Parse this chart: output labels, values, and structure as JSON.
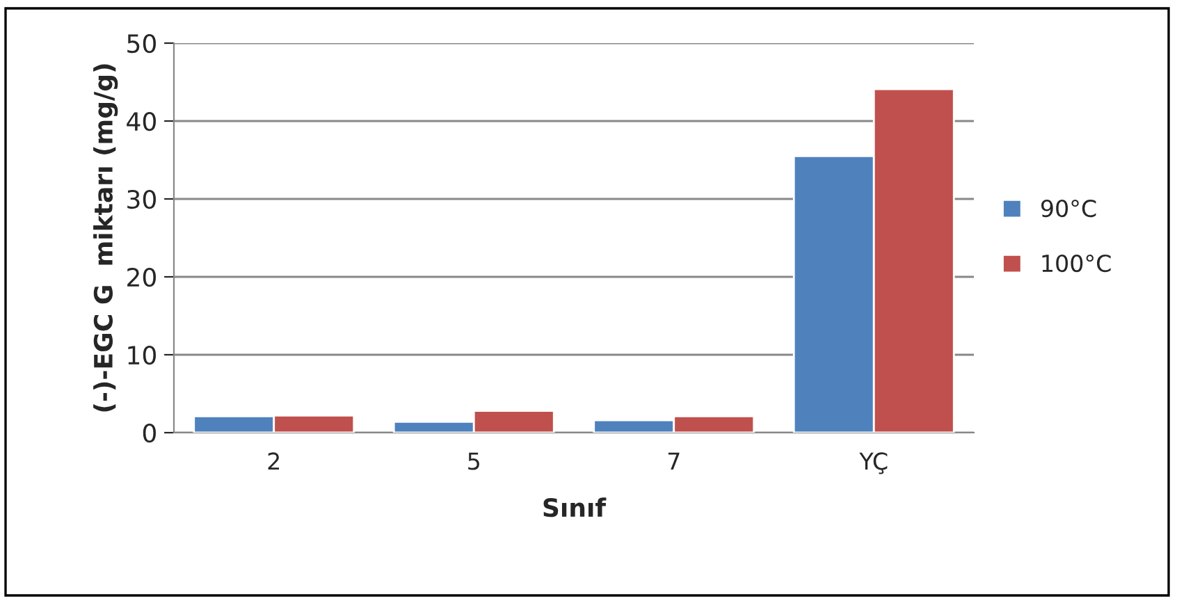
{
  "chart_data": {
    "type": "bar",
    "xlabel": "Sınıf",
    "ylabel": "(-)-EGC G  miktarı (mg/g)",
    "categories": [
      "2",
      "5",
      "7",
      "YÇ"
    ],
    "series": [
      {
        "name": "90°C",
        "color": "#4f81bd",
        "values": [
          2.1,
          1.4,
          1.6,
          35.5
        ]
      },
      {
        "name": "100°C",
        "color": "#c0504d",
        "values": [
          2.2,
          2.8,
          2.1,
          44.1
        ]
      }
    ],
    "ylim": [
      0,
      50
    ],
    "yticks": [
      0,
      10,
      20,
      30,
      40,
      50
    ],
    "grid": "y",
    "legend": "right"
  }
}
